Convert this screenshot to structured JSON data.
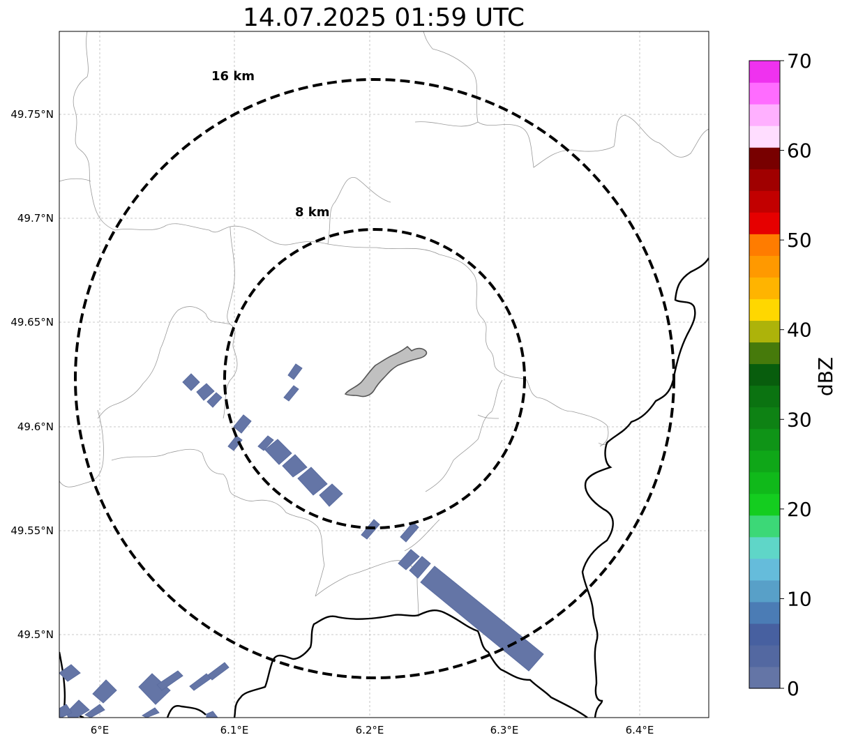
{
  "title": "14.07.2025 01:59 UTC",
  "map": {
    "lon_labels": [
      "6°E",
      "6.1°E",
      "6.2°E",
      "6.3°E",
      "6.4°E"
    ],
    "lat_labels": [
      "49.75°N",
      "49.7°N",
      "49.65°N",
      "49.6°N",
      "49.55°N",
      "49.5°N"
    ],
    "range_rings": [
      "16 km",
      "8 km"
    ],
    "gridlines": true,
    "border_color": "#000000",
    "admin_line_color": "#999999",
    "city_fill": "#c0c0c0"
  },
  "colorbar": {
    "label": "dBZ",
    "ticks": [
      "0",
      "10",
      "20",
      "30",
      "40",
      "50",
      "60",
      "70"
    ],
    "colors": [
      "#6475a6",
      "#5368a1",
      "#4760a0",
      "#4b7cb5",
      "#58a0c8",
      "#65bcdb",
      "#5fd6c8",
      "#3cd877",
      "#14cd1f",
      "#10b91a",
      "#0fa718",
      "#0f9417",
      "#0e8214",
      "#0b7311",
      "#085d0d",
      "#467a0b",
      "#adb30a",
      "#ffd700",
      "#ffb400",
      "#ff9900",
      "#ff7c00",
      "#e60000",
      "#c20000",
      "#a00000",
      "#780000",
      "#ffddff",
      "#ffb0ff",
      "#ff6cff",
      "#ef32ef"
    ]
  }
}
